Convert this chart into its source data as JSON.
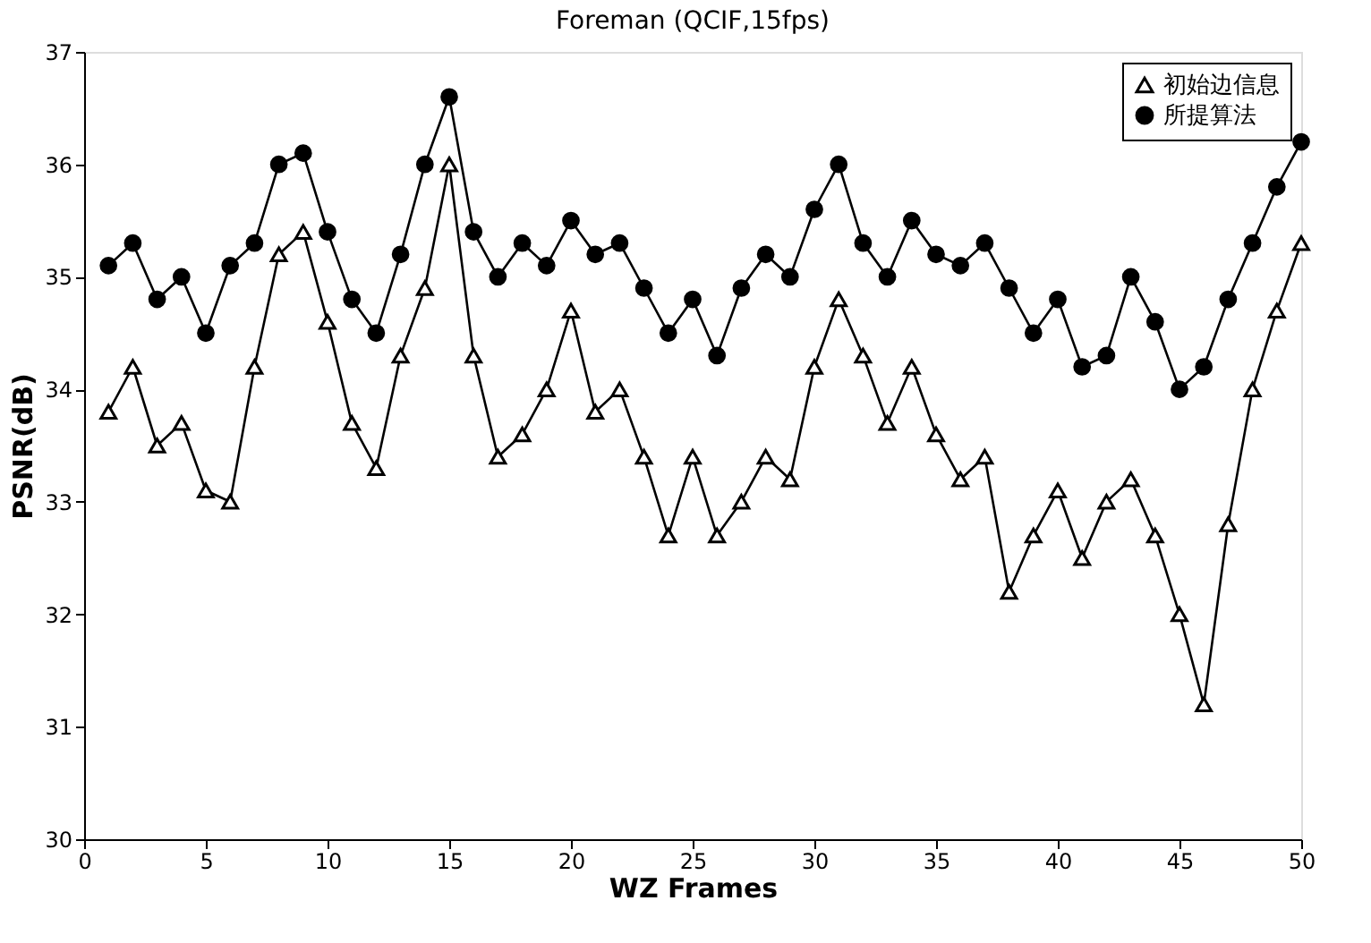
{
  "chart_data": {
    "type": "line",
    "title": "Foreman (QCIF,15fps)",
    "xlabel": "WZ Frames",
    "ylabel": "PSNR(dB)",
    "x": [
      1,
      2,
      3,
      4,
      5,
      6,
      7,
      8,
      9,
      10,
      11,
      12,
      13,
      14,
      15,
      16,
      17,
      18,
      19,
      20,
      21,
      22,
      23,
      24,
      25,
      26,
      27,
      28,
      29,
      30,
      31,
      32,
      33,
      34,
      35,
      36,
      37,
      38,
      39,
      40,
      41,
      42,
      43,
      44,
      45,
      46,
      47,
      48,
      49,
      50
    ],
    "series": [
      {
        "name": "初始边信息",
        "color": "#000000",
        "marker": "triangle",
        "values": [
          33.8,
          34.2,
          33.5,
          33.7,
          33.1,
          33.0,
          34.2,
          35.2,
          35.4,
          34.6,
          33.7,
          33.3,
          34.3,
          34.9,
          36.0,
          34.3,
          33.4,
          33.6,
          34.0,
          34.7,
          33.8,
          34.0,
          33.4,
          32.7,
          33.4,
          32.7,
          33.0,
          33.4,
          33.2,
          34.2,
          34.8,
          34.3,
          33.7,
          34.2,
          33.6,
          33.2,
          33.4,
          32.2,
          32.7,
          33.1,
          32.5,
          33.0,
          33.2,
          32.7,
          32.0,
          31.2,
          32.8,
          34.0,
          34.7,
          35.3
        ]
      },
      {
        "name": "所提算法",
        "color": "#000000",
        "marker": "circle",
        "values": [
          35.1,
          35.3,
          34.8,
          35.0,
          34.5,
          35.1,
          35.3,
          36.0,
          36.1,
          35.4,
          34.8,
          34.5,
          35.2,
          36.0,
          36.6,
          35.4,
          35.0,
          35.3,
          35.1,
          35.5,
          35.2,
          35.3,
          34.9,
          34.5,
          34.8,
          34.3,
          34.9,
          35.2,
          35.0,
          35.6,
          36.0,
          35.3,
          35.0,
          35.5,
          35.2,
          35.1,
          35.3,
          34.9,
          34.5,
          34.8,
          34.2,
          34.3,
          35.0,
          34.6,
          34.0,
          34.2,
          34.8,
          35.3,
          35.8,
          36.2
        ]
      }
    ],
    "xlim": [
      0,
      50
    ],
    "xticks": [
      0,
      5,
      10,
      15,
      20,
      25,
      30,
      35,
      40,
      45,
      50
    ],
    "ylim": [
      30,
      37
    ],
    "yticks": [
      30,
      31,
      32,
      33,
      34,
      35,
      36,
      37
    ],
    "grid": false,
    "legend": "top right",
    "line_style": "solid"
  }
}
